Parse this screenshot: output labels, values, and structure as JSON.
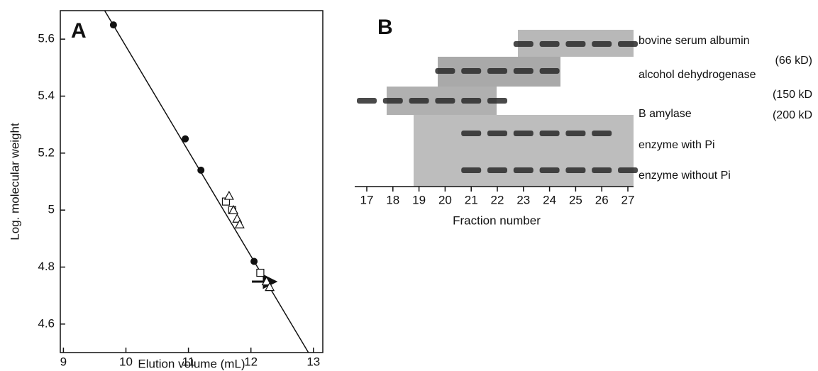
{
  "chart_data": {
    "type": "scatter",
    "panel_label": "A",
    "x_label": "Elution volume (mL)",
    "y_label": "Log. molecular weight",
    "xlim": [
      8.95,
      13.15
    ],
    "ylim": [
      4.5,
      5.7
    ],
    "xticks": [
      9,
      10,
      11,
      12,
      13
    ],
    "yticks": [
      4.6,
      4.8,
      5,
      5.2,
      5.4,
      5.6
    ],
    "grid": false,
    "series": [
      {
        "marker": "line",
        "color": "#111111",
        "x": [
          9.66,
          12.92
        ],
        "values": [
          5.7,
          4.5
        ]
      },
      {
        "marker": "circle",
        "color": "#111111",
        "x": [
          9.8,
          10.95,
          11.2,
          12.05
        ],
        "values": [
          5.65,
          5.25,
          5.14,
          4.82
        ]
      },
      {
        "marker": "square",
        "color": "#111111",
        "x": [
          11.6,
          11.7,
          12.15
        ],
        "values": [
          5.03,
          5.0,
          4.78
        ]
      },
      {
        "marker": "triangle",
        "color": "#111111",
        "x": [
          11.65,
          11.72,
          11.78,
          11.82,
          12.25,
          12.3
        ],
        "values": [
          5.05,
          5.0,
          4.97,
          4.95,
          4.75,
          4.73
        ]
      }
    ]
  },
  "gel": {
    "panel_label": "B",
    "x_label": "Fraction number",
    "fractions": [
      "17",
      "18",
      "19",
      "20",
      "21",
      "22",
      "23",
      "24",
      "25",
      "26",
      "27"
    ],
    "bands": [
      {
        "name": "bovine serum albumin",
        "size": "(66 kD)"
      },
      {
        "name": "alcohol dehydrogenase",
        "size": "(150 kD"
      },
      {
        "name": "B amylase",
        "size": "(200 kD"
      },
      {
        "name": "enzyme with Pi"
      },
      {
        "name": "enzyme without Pi"
      }
    ]
  }
}
